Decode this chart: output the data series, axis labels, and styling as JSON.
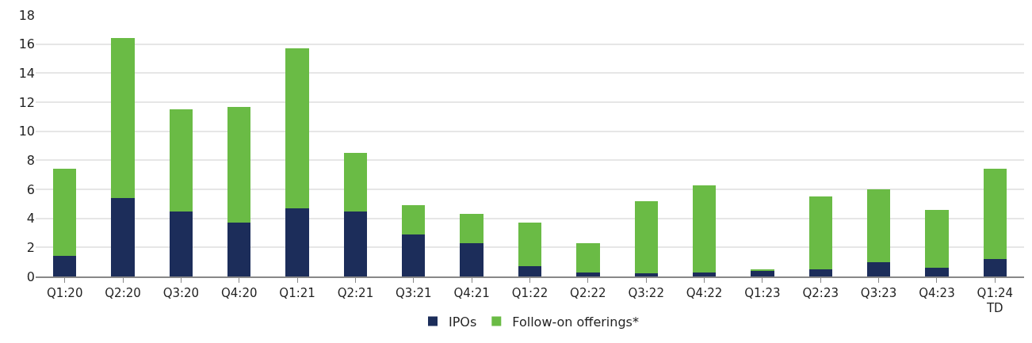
{
  "chart_data": {
    "type": "bar",
    "stacked": true,
    "categories": [
      "Q1:20",
      "Q2:20",
      "Q3:20",
      "Q4:20",
      "Q1:21",
      "Q2:21",
      "Q3:21",
      "Q4:21",
      "Q1:22",
      "Q2:22",
      "Q3:22",
      "Q4:22",
      "Q1:23",
      "Q2:23",
      "Q3:23",
      "Q4:23",
      "Q1:24\nTD"
    ],
    "series": [
      {
        "name": "IPOs",
        "color": "#1c2d5a",
        "values": [
          1.4,
          5.4,
          4.5,
          3.7,
          4.7,
          4.5,
          2.9,
          2.3,
          0.7,
          0.3,
          0.2,
          0.3,
          0.4,
          0.5,
          1.0,
          0.6,
          1.2
        ]
      },
      {
        "name": "Follow-on offerings*",
        "color": "#6abb45",
        "values": [
          6.0,
          11.0,
          7.0,
          8.0,
          11.0,
          4.0,
          2.0,
          2.0,
          3.0,
          2.0,
          5.0,
          6.0,
          0.05,
          5.0,
          5.0,
          4.0,
          6.2
        ]
      }
    ],
    "ylim": [
      0,
      18
    ],
    "yticks": [
      0,
      2,
      4,
      6,
      8,
      10,
      12,
      14,
      16,
      18
    ],
    "grid": "y",
    "legend": "bottom"
  }
}
